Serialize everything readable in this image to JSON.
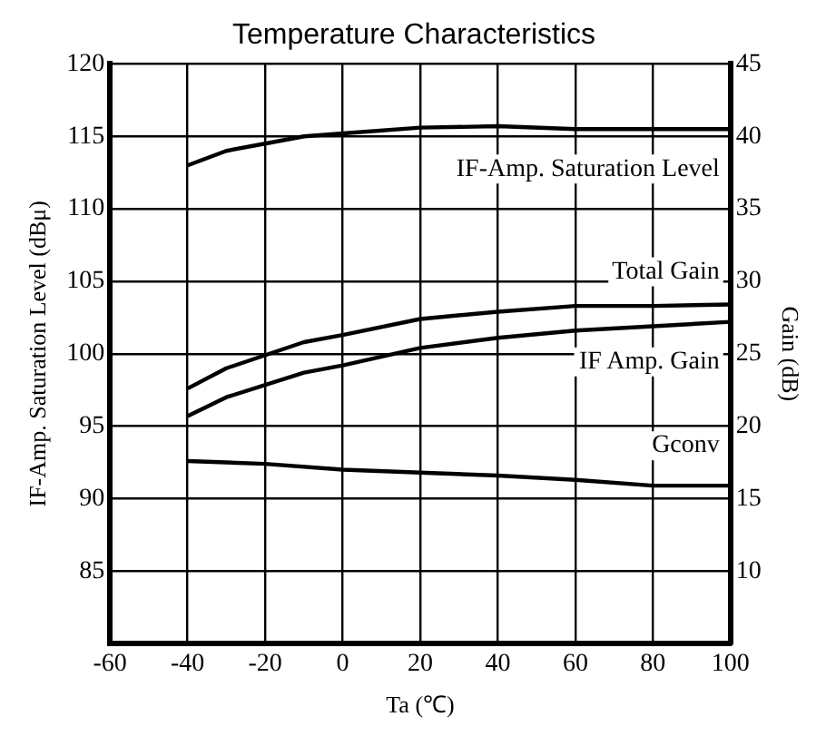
{
  "chart_data": {
    "type": "line",
    "title": "Temperature Characteristics",
    "xlabel": "Ta (℃)",
    "ylabel": "IF-Amp. Saturation Level (dBμ)",
    "y2label": "Gain (dB)",
    "xlim": [
      -60,
      100
    ],
    "xticks": [
      -60,
      -40,
      -20,
      0,
      20,
      40,
      60,
      80,
      100
    ],
    "ylim": [
      80,
      120
    ],
    "yticks": [
      85,
      90,
      95,
      100,
      105,
      110,
      115,
      120
    ],
    "y2lim": [
      5,
      45
    ],
    "y2ticks": [
      10,
      15,
      20,
      25,
      30,
      35,
      40,
      45
    ],
    "grid": true,
    "legend": false,
    "marker": "none",
    "line_style": "solid",
    "series": [
      {
        "name": "IF-Amp. Saturation Level",
        "color": "#000000",
        "x": [
          -40,
          -30,
          -20,
          -10,
          0,
          20,
          40,
          60,
          80,
          100
        ],
        "values": [
          113,
          114,
          114.5,
          115,
          115.2,
          115.6,
          115.7,
          115.5,
          115.5,
          115.5
        ]
      },
      {
        "name": "Total Gain",
        "color": "#000000",
        "axis": "y2",
        "x": [
          -40,
          -30,
          -10,
          0,
          20,
          40,
          60,
          80,
          100
        ],
        "values": [
          22.6,
          24,
          25.8,
          26.3,
          27.4,
          27.9,
          28.3,
          28.3,
          28.4
        ]
      },
      {
        "name": "IF Amp. Gain",
        "color": "#000000",
        "axis": "y2",
        "x": [
          -40,
          -30,
          -10,
          0,
          20,
          40,
          60,
          80,
          100
        ],
        "values": [
          20.7,
          22,
          23.7,
          24.2,
          25.4,
          26.1,
          26.6,
          26.9,
          27.2
        ]
      },
      {
        "name": "Gconv",
        "color": "#000000",
        "axis": "y2",
        "x": [
          -40,
          -20,
          0,
          20,
          40,
          60,
          80,
          100
        ],
        "values": [
          17.6,
          17.4,
          17,
          16.8,
          16.6,
          16.3,
          15.9,
          15.9
        ]
      }
    ]
  }
}
